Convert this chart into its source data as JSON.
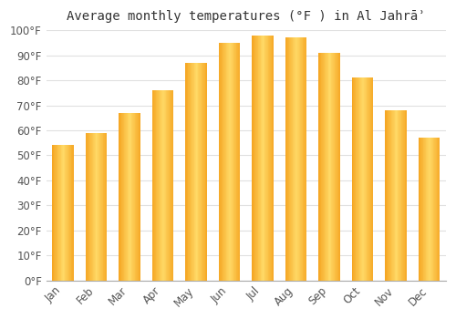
{
  "title": "Average monthly temperatures (°F ) in Al Jahrāʾ",
  "months": [
    "Jan",
    "Feb",
    "Mar",
    "Apr",
    "May",
    "Jun",
    "Jul",
    "Aug",
    "Sep",
    "Oct",
    "Nov",
    "Dec"
  ],
  "values": [
    54,
    59,
    67,
    76,
    87,
    95,
    98,
    97,
    91,
    81,
    68,
    57
  ],
  "bar_color_center": "#FFD966",
  "bar_color_edge": "#F5A623",
  "ylim": [
    0,
    100
  ],
  "yticks": [
    0,
    10,
    20,
    30,
    40,
    50,
    60,
    70,
    80,
    90,
    100
  ],
  "ytick_labels": [
    "0°F",
    "10°F",
    "20°F",
    "30°F",
    "40°F",
    "50°F",
    "60°F",
    "70°F",
    "80°F",
    "90°F",
    "100°F"
  ],
  "background_color": "#ffffff",
  "grid_color": "#e0e0e0",
  "title_fontsize": 10,
  "tick_fontsize": 8.5,
  "bar_width": 0.65
}
